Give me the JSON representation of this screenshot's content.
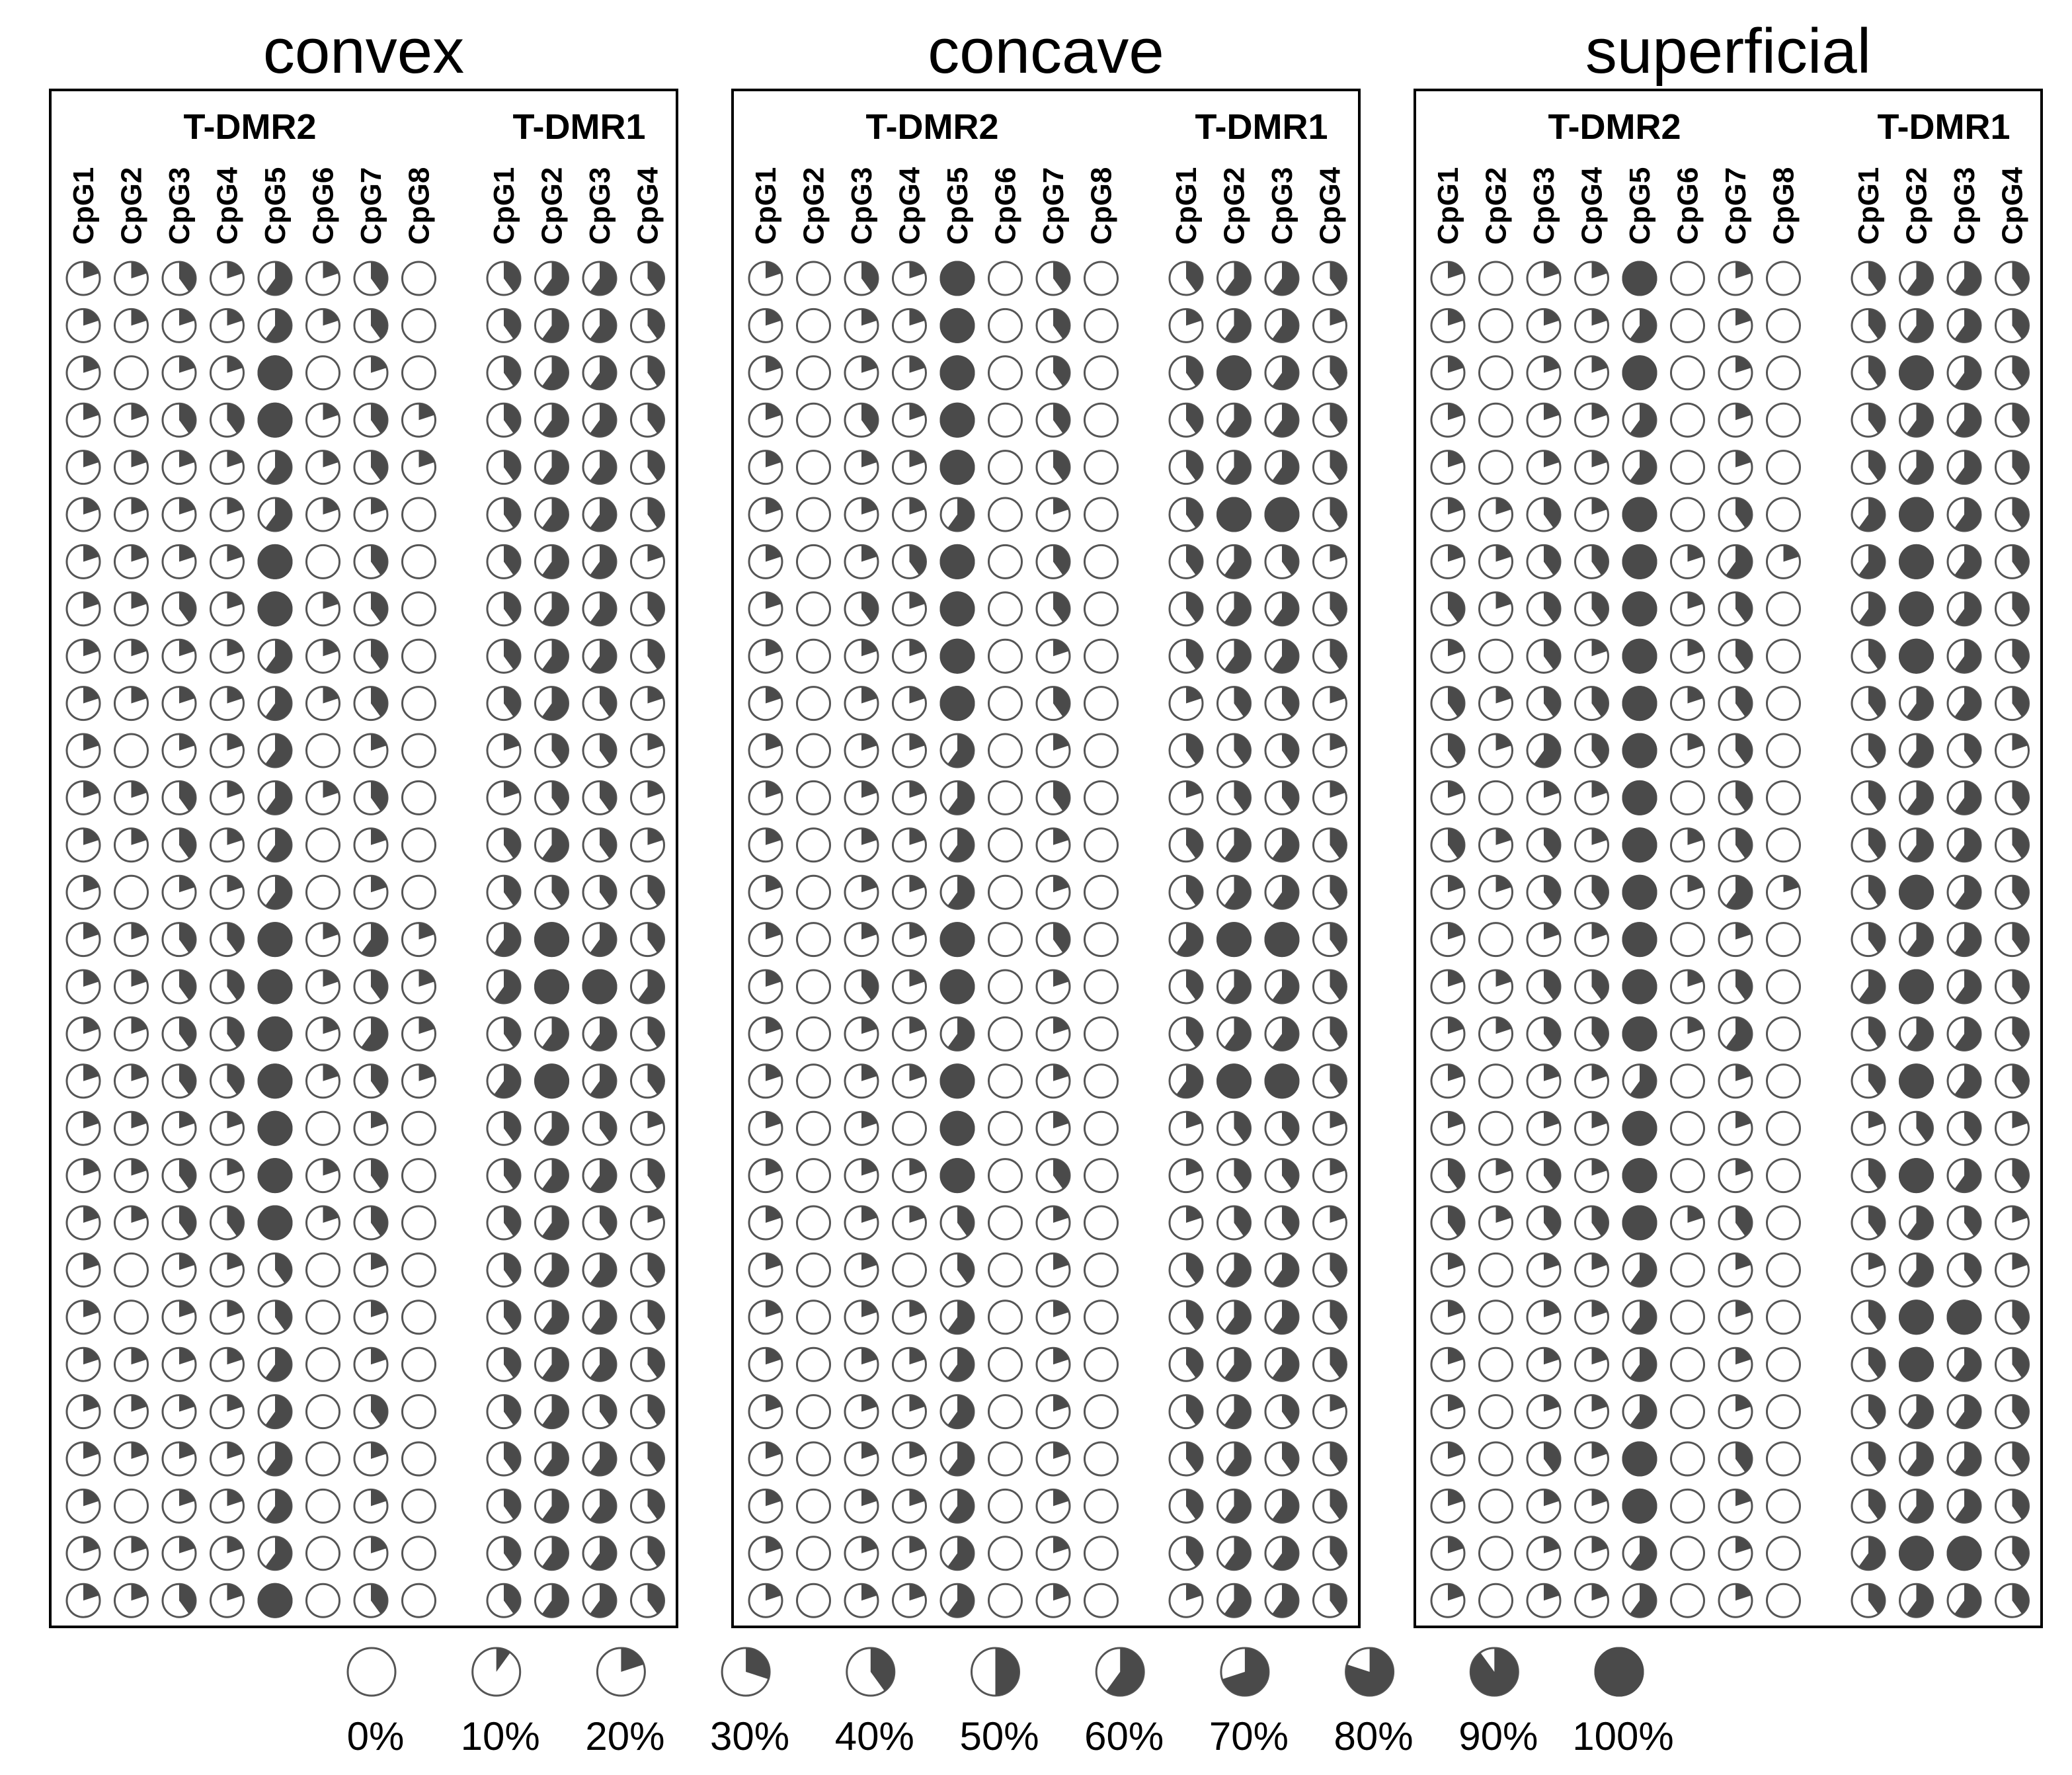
{
  "colors": {
    "fill": "#4a4a4a",
    "outline": "#555555",
    "frame": "#000000",
    "background": "#ffffff"
  },
  "regions": [
    {
      "name": "T-DMR2",
      "sites": [
        "CpG1",
        "CpG2",
        "CpG3",
        "CpG4",
        "CpG5",
        "CpG6",
        "CpG7",
        "CpG8"
      ]
    },
    {
      "name": "T-DMR1",
      "sites": [
        "CpG1",
        "CpG2",
        "CpG3",
        "CpG4"
      ]
    }
  ],
  "panels": [
    {
      "title": "convex",
      "rows": [
        [
          20,
          20,
          40,
          20,
          60,
          20,
          40,
          0,
          40,
          60,
          60,
          40
        ],
        [
          20,
          20,
          20,
          20,
          60,
          20,
          40,
          0,
          40,
          60,
          60,
          40
        ],
        [
          20,
          0,
          20,
          20,
          100,
          0,
          20,
          0,
          40,
          60,
          60,
          40
        ],
        [
          20,
          20,
          40,
          40,
          100,
          20,
          40,
          20,
          40,
          60,
          60,
          40
        ],
        [
          20,
          20,
          20,
          20,
          60,
          20,
          40,
          20,
          40,
          60,
          60,
          40
        ],
        [
          20,
          20,
          20,
          20,
          60,
          20,
          20,
          0,
          40,
          60,
          60,
          40
        ],
        [
          20,
          20,
          20,
          20,
          100,
          0,
          40,
          0,
          40,
          60,
          60,
          20
        ],
        [
          20,
          20,
          40,
          20,
          100,
          20,
          40,
          0,
          40,
          60,
          60,
          40
        ],
        [
          20,
          20,
          20,
          20,
          60,
          20,
          40,
          0,
          40,
          60,
          60,
          40
        ],
        [
          20,
          20,
          20,
          20,
          60,
          20,
          40,
          0,
          40,
          60,
          40,
          20
        ],
        [
          20,
          0,
          20,
          20,
          60,
          0,
          20,
          0,
          20,
          40,
          40,
          20
        ],
        [
          20,
          20,
          40,
          20,
          60,
          20,
          40,
          0,
          20,
          40,
          40,
          20
        ],
        [
          20,
          20,
          40,
          20,
          60,
          0,
          20,
          0,
          40,
          60,
          40,
          20
        ],
        [
          20,
          0,
          20,
          20,
          60,
          0,
          20,
          0,
          40,
          40,
          40,
          40
        ],
        [
          20,
          20,
          40,
          40,
          100,
          20,
          60,
          20,
          60,
          100,
          60,
          40
        ],
        [
          20,
          20,
          40,
          40,
          100,
          20,
          40,
          20,
          60,
          100,
          100,
          60
        ],
        [
          20,
          20,
          40,
          40,
          100,
          20,
          60,
          20,
          40,
          60,
          60,
          40
        ],
        [
          20,
          20,
          40,
          40,
          100,
          20,
          40,
          20,
          60,
          100,
          60,
          40
        ],
        [
          20,
          20,
          20,
          20,
          100,
          0,
          20,
          0,
          40,
          60,
          40,
          20
        ],
        [
          20,
          20,
          40,
          20,
          100,
          20,
          40,
          0,
          40,
          60,
          60,
          40
        ],
        [
          20,
          20,
          40,
          40,
          100,
          20,
          40,
          0,
          40,
          60,
          40,
          20
        ],
        [
          20,
          0,
          20,
          20,
          40,
          0,
          20,
          0,
          40,
          60,
          60,
          40
        ],
        [
          20,
          0,
          20,
          20,
          40,
          0,
          20,
          0,
          40,
          60,
          60,
          40
        ],
        [
          20,
          20,
          20,
          20,
          60,
          0,
          20,
          0,
          40,
          60,
          60,
          40
        ],
        [
          20,
          20,
          20,
          20,
          60,
          0,
          40,
          0,
          40,
          60,
          40,
          40
        ],
        [
          20,
          20,
          20,
          20,
          60,
          0,
          20,
          0,
          40,
          60,
          60,
          40
        ],
        [
          20,
          0,
          20,
          20,
          60,
          0,
          20,
          0,
          40,
          60,
          60,
          40
        ],
        [
          20,
          20,
          20,
          20,
          60,
          0,
          20,
          0,
          40,
          60,
          60,
          40
        ],
        [
          20,
          20,
          40,
          20,
          100,
          0,
          40,
          0,
          40,
          60,
          60,
          40
        ]
      ]
    },
    {
      "title": "concave",
      "rows": [
        [
          20,
          0,
          40,
          20,
          100,
          0,
          40,
          0,
          40,
          60,
          60,
          40
        ],
        [
          20,
          0,
          20,
          20,
          100,
          0,
          40,
          0,
          20,
          60,
          60,
          20
        ],
        [
          20,
          0,
          20,
          20,
          100,
          0,
          40,
          0,
          40,
          100,
          60,
          40
        ],
        [
          20,
          0,
          40,
          20,
          100,
          0,
          40,
          0,
          40,
          60,
          60,
          40
        ],
        [
          20,
          0,
          20,
          20,
          100,
          0,
          40,
          0,
          40,
          60,
          60,
          40
        ],
        [
          20,
          0,
          20,
          20,
          60,
          0,
          20,
          0,
          40,
          100,
          100,
          40
        ],
        [
          20,
          0,
          20,
          40,
          100,
          0,
          40,
          0,
          40,
          60,
          40,
          20
        ],
        [
          20,
          0,
          40,
          20,
          100,
          0,
          40,
          0,
          40,
          60,
          60,
          40
        ],
        [
          20,
          0,
          20,
          20,
          100,
          0,
          20,
          0,
          40,
          60,
          60,
          40
        ],
        [
          20,
          0,
          20,
          20,
          100,
          0,
          40,
          0,
          20,
          40,
          40,
          20
        ],
        [
          20,
          0,
          20,
          20,
          60,
          0,
          20,
          0,
          40,
          40,
          40,
          20
        ],
        [
          20,
          0,
          20,
          20,
          60,
          0,
          40,
          0,
          20,
          40,
          40,
          20
        ],
        [
          20,
          0,
          20,
          20,
          60,
          0,
          20,
          0,
          40,
          60,
          60,
          40
        ],
        [
          20,
          0,
          20,
          20,
          60,
          0,
          20,
          0,
          40,
          60,
          60,
          40
        ],
        [
          20,
          0,
          20,
          20,
          100,
          0,
          40,
          0,
          60,
          100,
          100,
          40
        ],
        [
          20,
          0,
          40,
          20,
          100,
          0,
          20,
          0,
          40,
          60,
          60,
          40
        ],
        [
          20,
          0,
          20,
          20,
          60,
          0,
          20,
          0,
          40,
          60,
          60,
          40
        ],
        [
          20,
          0,
          20,
          20,
          100,
          0,
          20,
          0,
          60,
          100,
          100,
          40
        ],
        [
          20,
          0,
          20,
          0,
          100,
          0,
          20,
          0,
          20,
          40,
          40,
          20
        ],
        [
          20,
          0,
          20,
          20,
          100,
          0,
          40,
          0,
          20,
          40,
          40,
          20
        ],
        [
          20,
          0,
          20,
          20,
          40,
          0,
          20,
          0,
          20,
          40,
          40,
          20
        ],
        [
          20,
          0,
          20,
          0,
          40,
          0,
          20,
          0,
          40,
          60,
          60,
          40
        ],
        [
          20,
          0,
          20,
          20,
          60,
          0,
          20,
          0,
          40,
          60,
          60,
          40
        ],
        [
          20,
          0,
          20,
          20,
          60,
          0,
          20,
          0,
          40,
          60,
          60,
          40
        ],
        [
          20,
          0,
          20,
          20,
          60,
          0,
          20,
          0,
          40,
          60,
          40,
          20
        ],
        [
          20,
          0,
          20,
          20,
          60,
          0,
          20,
          0,
          40,
          60,
          40,
          40
        ],
        [
          20,
          0,
          20,
          20,
          60,
          0,
          20,
          0,
          40,
          60,
          60,
          40
        ],
        [
          20,
          0,
          20,
          20,
          60,
          0,
          20,
          0,
          40,
          60,
          60,
          40
        ],
        [
          20,
          0,
          20,
          20,
          60,
          0,
          20,
          0,
          20,
          60,
          60,
          40
        ]
      ]
    },
    {
      "title": "superficial",
      "rows": [
        [
          20,
          0,
          20,
          20,
          100,
          0,
          20,
          0,
          40,
          60,
          60,
          40
        ],
        [
          20,
          0,
          20,
          20,
          60,
          0,
          20,
          0,
          40,
          60,
          60,
          40
        ],
        [
          20,
          0,
          20,
          20,
          100,
          0,
          20,
          0,
          40,
          100,
          60,
          40
        ],
        [
          20,
          0,
          20,
          20,
          60,
          0,
          20,
          0,
          40,
          60,
          60,
          40
        ],
        [
          20,
          0,
          20,
          20,
          60,
          0,
          20,
          0,
          40,
          60,
          60,
          40
        ],
        [
          20,
          20,
          40,
          20,
          100,
          0,
          40,
          0,
          60,
          100,
          60,
          40
        ],
        [
          20,
          20,
          40,
          40,
          100,
          20,
          60,
          20,
          60,
          100,
          60,
          40
        ],
        [
          40,
          20,
          40,
          40,
          100,
          20,
          40,
          0,
          60,
          100,
          60,
          40
        ],
        [
          20,
          0,
          40,
          20,
          100,
          20,
          40,
          0,
          40,
          100,
          60,
          40
        ],
        [
          40,
          20,
          40,
          40,
          100,
          20,
          40,
          0,
          40,
          60,
          60,
          40
        ],
        [
          40,
          20,
          60,
          40,
          100,
          20,
          40,
          0,
          40,
          60,
          40,
          20
        ],
        [
          20,
          0,
          20,
          20,
          100,
          0,
          40,
          0,
          40,
          60,
          60,
          40
        ],
        [
          40,
          20,
          40,
          20,
          100,
          20,
          40,
          0,
          40,
          60,
          60,
          40
        ],
        [
          20,
          20,
          40,
          40,
          100,
          20,
          60,
          20,
          40,
          100,
          60,
          40
        ],
        [
          20,
          0,
          20,
          20,
          100,
          0,
          20,
          0,
          40,
          60,
          60,
          40
        ],
        [
          20,
          20,
          40,
          40,
          100,
          20,
          40,
          0,
          60,
          100,
          60,
          40
        ],
        [
          20,
          20,
          40,
          40,
          100,
          20,
          60,
          0,
          40,
          60,
          60,
          40
        ],
        [
          20,
          0,
          20,
          20,
          60,
          0,
          20,
          0,
          40,
          100,
          60,
          40
        ],
        [
          20,
          0,
          20,
          20,
          100,
          0,
          20,
          0,
          20,
          40,
          40,
          20
        ],
        [
          40,
          20,
          40,
          20,
          100,
          0,
          20,
          0,
          40,
          100,
          60,
          40
        ],
        [
          40,
          20,
          40,
          40,
          100,
          20,
          40,
          0,
          40,
          60,
          40,
          20
        ],
        [
          20,
          0,
          20,
          20,
          60,
          0,
          20,
          0,
          20,
          60,
          40,
          20
        ],
        [
          20,
          0,
          20,
          20,
          60,
          0,
          20,
          0,
          40,
          100,
          100,
          40
        ],
        [
          20,
          0,
          20,
          20,
          60,
          0,
          20,
          0,
          40,
          100,
          60,
          40
        ],
        [
          20,
          0,
          20,
          20,
          60,
          0,
          20,
          0,
          40,
          60,
          60,
          40
        ],
        [
          20,
          0,
          40,
          20,
          100,
          0,
          40,
          0,
          40,
          60,
          60,
          40
        ],
        [
          20,
          0,
          20,
          20,
          100,
          0,
          20,
          0,
          40,
          60,
          60,
          40
        ],
        [
          20,
          0,
          20,
          20,
          60,
          0,
          20,
          0,
          60,
          100,
          100,
          40
        ],
        [
          20,
          0,
          20,
          20,
          60,
          0,
          20,
          0,
          40,
          60,
          60,
          40
        ]
      ]
    }
  ],
  "legend": [
    {
      "label": "0%",
      "value": 0
    },
    {
      "label": "10%",
      "value": 10
    },
    {
      "label": "20%",
      "value": 20
    },
    {
      "label": "30%",
      "value": 30
    },
    {
      "label": "40%",
      "value": 40
    },
    {
      "label": "50%",
      "value": 50
    },
    {
      "label": "60%",
      "value": 60
    },
    {
      "label": "70%",
      "value": 70
    },
    {
      "label": "80%",
      "value": 80
    },
    {
      "label": "90%",
      "value": 90
    },
    {
      "label": "100%",
      "value": 100
    }
  ]
}
